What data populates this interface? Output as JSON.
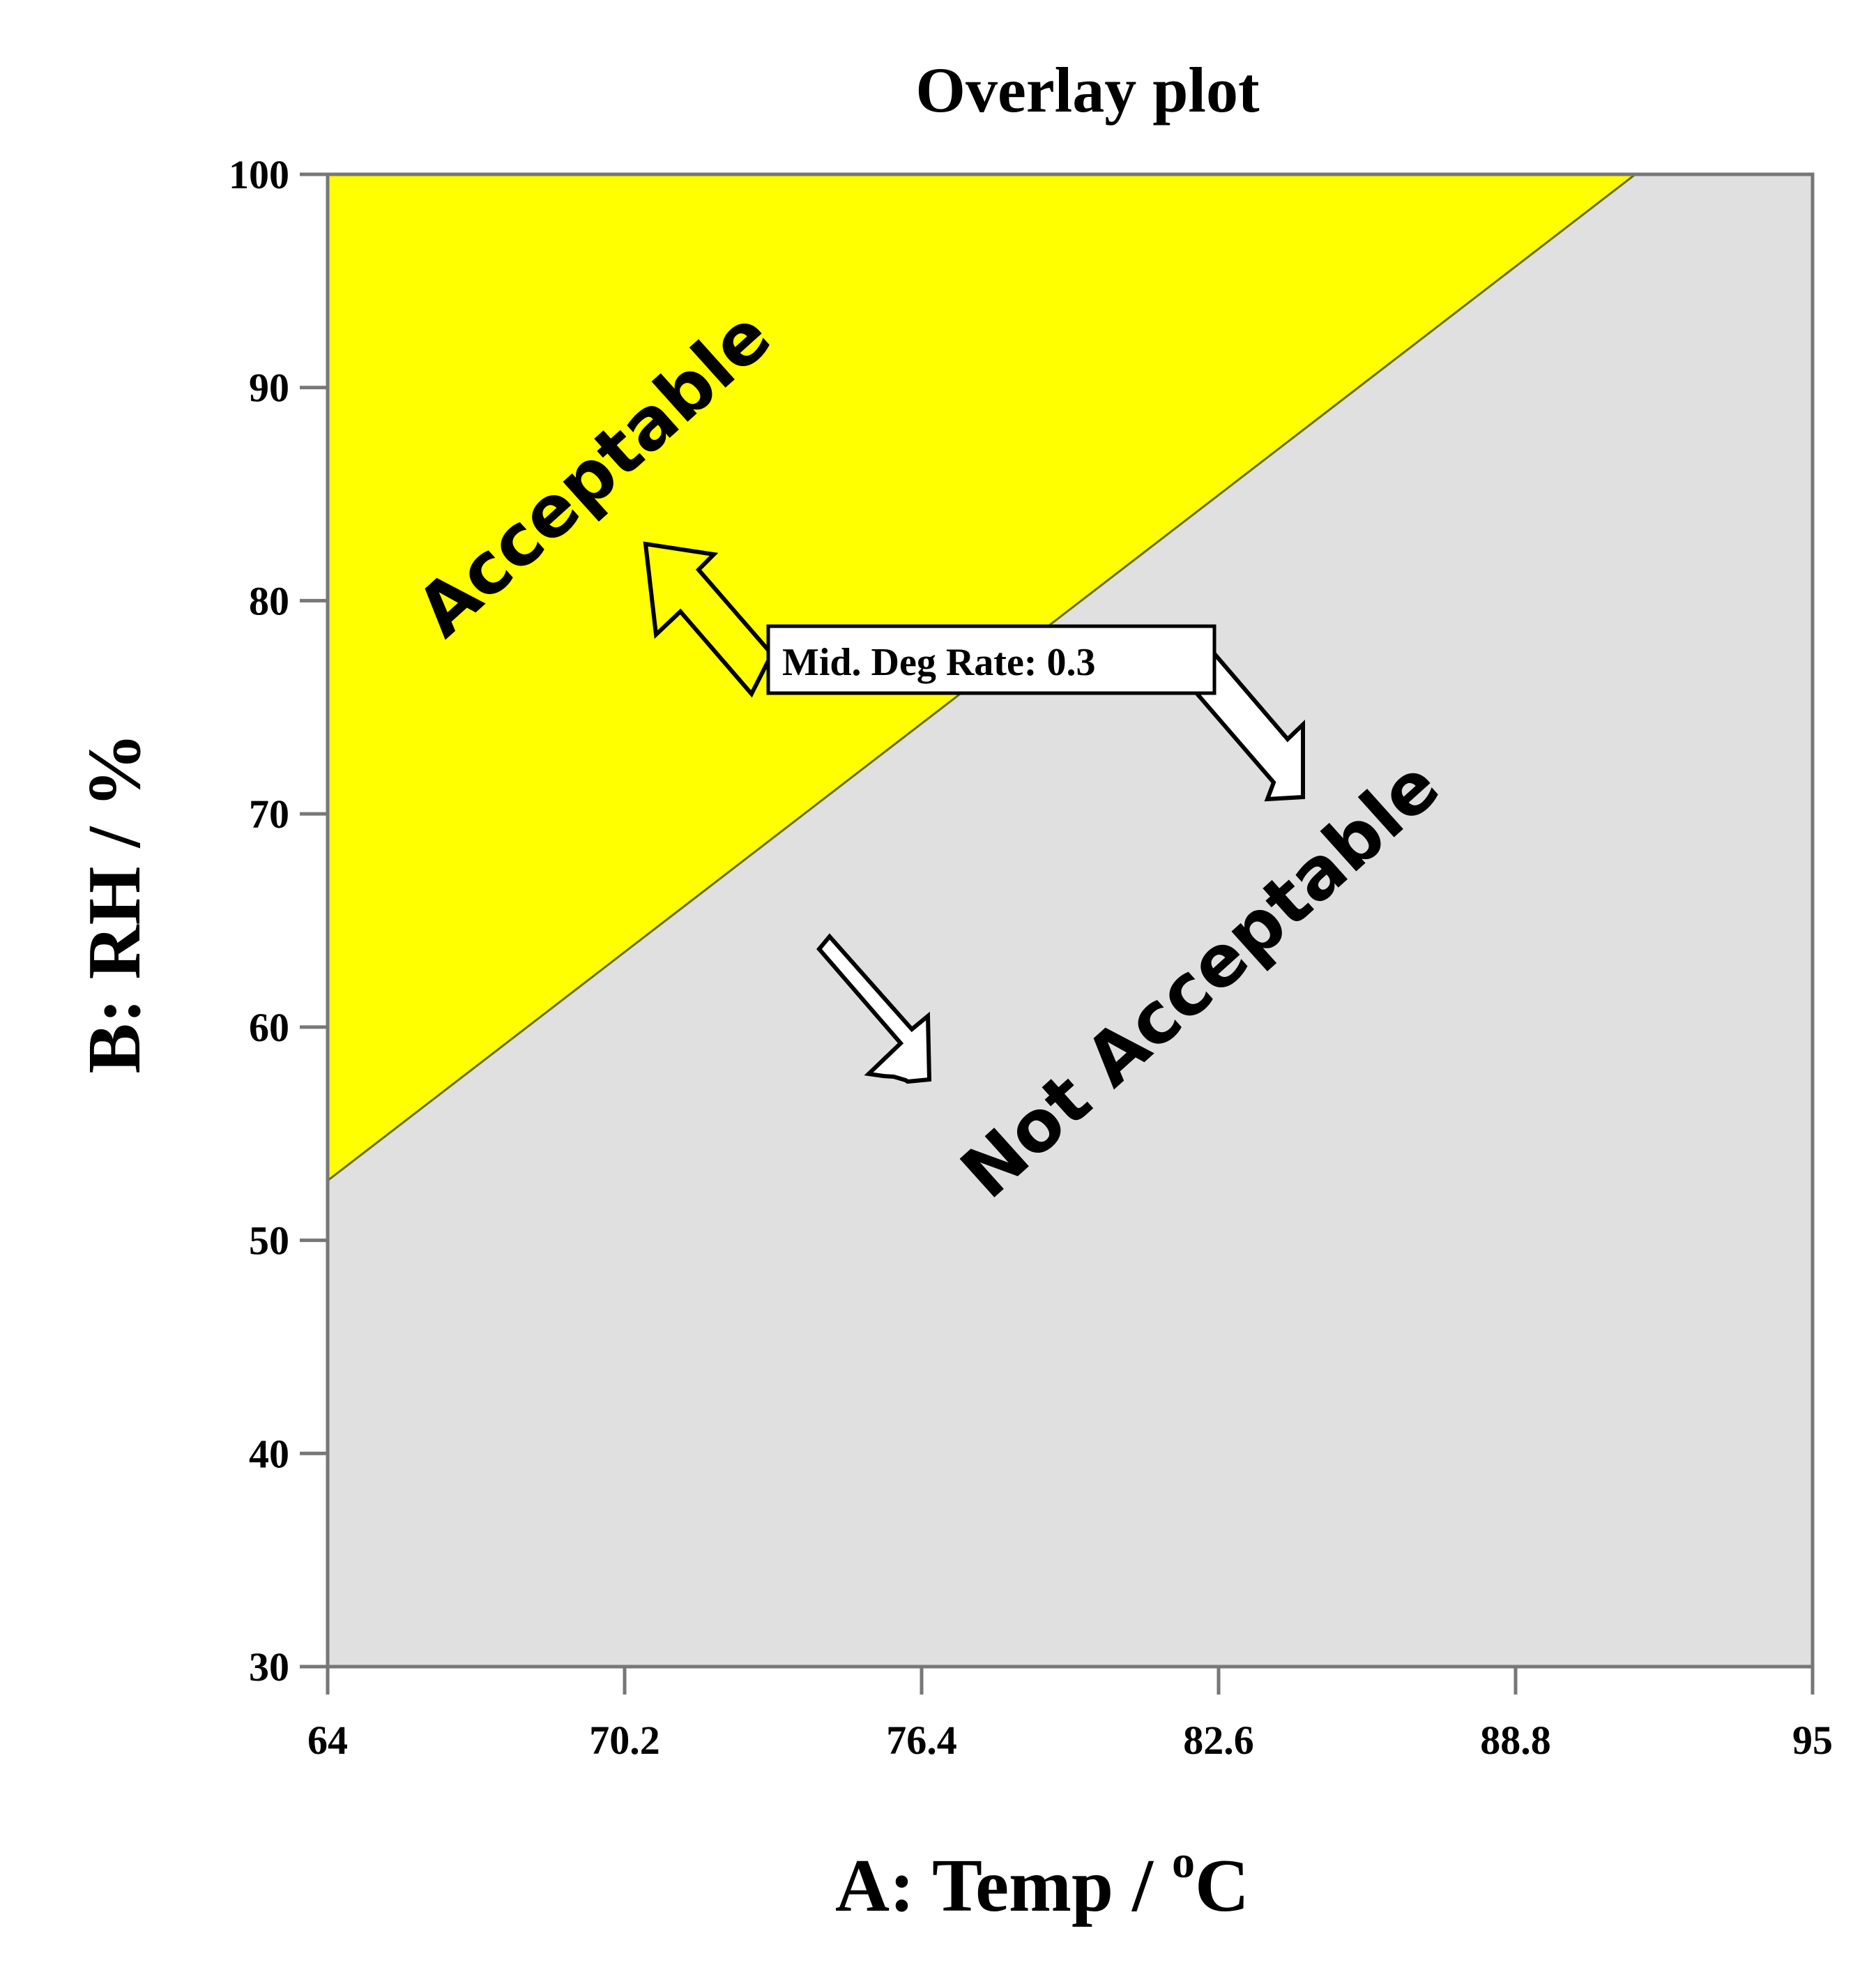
{
  "chart_data": {
    "type": "area",
    "title": "Overlay plot",
    "xlabel": "A: Temp / ",
    "xlabel_unit_sup": "o",
    "xlabel_unit": "C",
    "ylabel": "B: RH / %",
    "xlim": [
      64,
      95
    ],
    "ylim": [
      30,
      100
    ],
    "x_ticks": [
      64,
      70.2,
      76.4,
      82.6,
      88.8,
      95
    ],
    "x_tick_labels": [
      "64",
      "70.2",
      "76.4",
      "82.6",
      "88.8",
      "95"
    ],
    "y_ticks": [
      30,
      40,
      50,
      60,
      70,
      80,
      90,
      100
    ],
    "y_tick_labels": [
      "30",
      "40",
      "50",
      "60",
      "70",
      "80",
      "90",
      "100"
    ],
    "boundary": {
      "name": "Mid. Deg Rate: 0.3",
      "x": [
        64,
        91.3
      ],
      "y": [
        52.8,
        100
      ]
    },
    "regions": [
      {
        "label": "Acceptable",
        "color": "#ffff00",
        "side": "above"
      },
      {
        "label": "Not Acceptable",
        "color": "#e0e0e0",
        "side": "below"
      }
    ],
    "annotation": "Mid. Deg Rate: 0.3",
    "grid": false
  }
}
